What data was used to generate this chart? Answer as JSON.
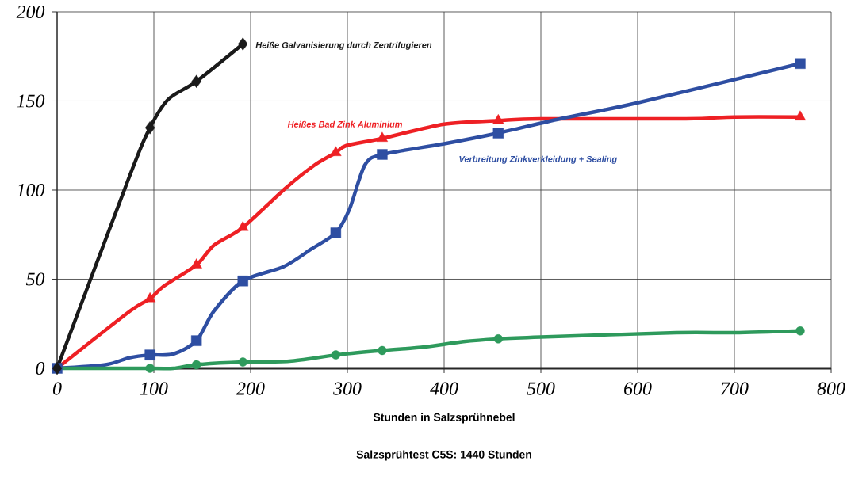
{
  "chart_data": {
    "type": "line",
    "title": "Salzsprühtest C5S: 1440 Stunden",
    "xlabel": "Stunden in Salzsprühnebel",
    "xlim": [
      0,
      800
    ],
    "ylim": [
      0,
      200
    ],
    "xticks": [
      0,
      100,
      200,
      300,
      400,
      500,
      600,
      700,
      800
    ],
    "yticks": [
      0,
      50,
      100,
      150,
      200
    ],
    "grid": true,
    "line_style": "solid",
    "series": [
      {
        "name": "Heiße Galvanisierung durch Zentrifugieren",
        "color": "#1a1a1a",
        "marker": "none",
        "x": [
          0,
          75,
          96,
          115,
          144,
          192
        ],
        "values": [
          0,
          108,
          135,
          151,
          161,
          182
        ]
      },
      {
        "type": "scatter",
        "color": "#1a1a1a",
        "marker": "diamond",
        "x": [
          0,
          96,
          144,
          192
        ],
        "values": [
          0,
          135,
          161,
          182
        ]
      },
      {
        "name": "Heißes Bad Zink Aluminium",
        "color": "#ee2024",
        "marker": "none",
        "x": [
          0,
          75,
          96,
          110,
          144,
          162,
          192,
          236,
          266,
          288,
          299,
          336,
          400,
          456,
          500,
          650,
          700,
          768
        ],
        "values": [
          0,
          32,
          39,
          46,
          58,
          69,
          79,
          101,
          114,
          121,
          125,
          129,
          137,
          139,
          140,
          140,
          141,
          141
        ]
      },
      {
        "type": "scatter",
        "color": "#ee2024",
        "marker": "triangle",
        "x": [
          96,
          144,
          192,
          288,
          336,
          456,
          768
        ],
        "values": [
          39,
          58,
          79,
          121,
          129,
          139,
          141
        ]
      },
      {
        "name": "Verbreitung Zinkverkleidung + Sealing",
        "color": "#2e4ea2",
        "marker": "none",
        "x": [
          0,
          50,
          75,
          96,
          120,
          144,
          162,
          192,
          234,
          263,
          288,
          302,
          318,
          336,
          400,
          456,
          520,
          600,
          768
        ],
        "values": [
          0,
          2,
          6,
          7.5,
          8,
          15.5,
          32,
          49,
          57,
          67,
          76,
          89,
          114,
          120,
          126,
          132,
          140,
          149,
          171
        ]
      },
      {
        "type": "scatter",
        "color": "#2e4ea2",
        "marker": "square",
        "x": [
          0,
          96,
          144,
          192,
          288,
          336,
          456,
          768
        ],
        "values": [
          0,
          7.5,
          15.5,
          49,
          76,
          120,
          132,
          171
        ]
      },
      {
        "color": "#2e9a5c",
        "marker": "none",
        "x": [
          0,
          96,
          120,
          144,
          192,
          240,
          288,
          336,
          380,
          420,
          456,
          500,
          640,
          700,
          768
        ],
        "values": [
          0,
          0,
          0,
          2,
          3.5,
          4,
          7.5,
          10,
          12,
          15,
          16.5,
          17.5,
          20,
          20,
          21
        ]
      },
      {
        "type": "scatter",
        "color": "#2e9a5c",
        "marker": "circle",
        "x": [
          96,
          144,
          192,
          288,
          336,
          456,
          768
        ],
        "values": [
          0,
          2,
          3.5,
          7.5,
          10,
          16.5,
          21
        ]
      }
    ]
  }
}
